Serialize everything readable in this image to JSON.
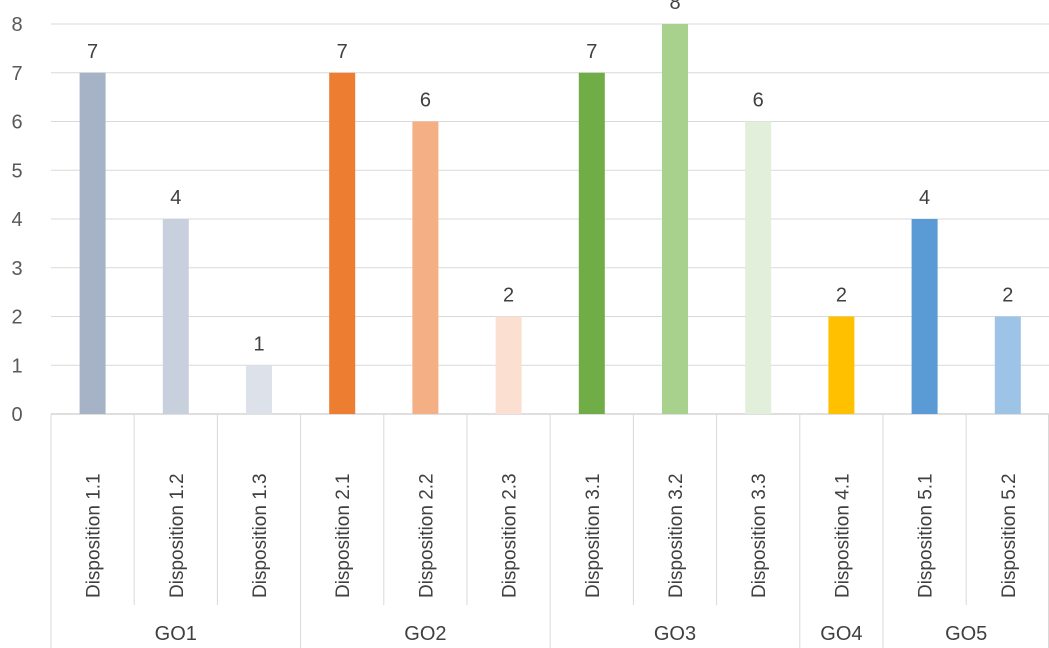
{
  "chart_data": {
    "type": "bar",
    "title": "",
    "xlabel": "",
    "ylabel": "",
    "ylim": [
      0,
      8
    ],
    "yticks": [
      0,
      1,
      2,
      3,
      4,
      5,
      6,
      7,
      8
    ],
    "grid": true,
    "legend": "none",
    "data_labels": true,
    "groups": [
      {
        "name": "GO1",
        "categories": [
          "Disposition 1.1",
          "Disposition 1.2",
          "Disposition 1.3"
        ],
        "values": [
          7,
          4,
          1
        ],
        "colors": [
          "#a6b3c6",
          "#c8cfdd",
          "#dde2ea"
        ]
      },
      {
        "name": "GO2",
        "categories": [
          "Disposition 2.1",
          "Disposition 2.2",
          "Disposition 2.3"
        ],
        "values": [
          7,
          6,
          2
        ],
        "colors": [
          "#ed7d31",
          "#f4af84",
          "#fbe0d2"
        ]
      },
      {
        "name": "GO3",
        "categories": [
          "Disposition 3.1",
          "Disposition 3.2",
          "Disposition 3.3"
        ],
        "values": [
          7,
          8,
          6
        ],
        "colors": [
          "#70ad47",
          "#a9d18e",
          "#e2efda"
        ]
      },
      {
        "name": "GO4",
        "categories": [
          "Disposition 4.1"
        ],
        "values": [
          2
        ],
        "colors": [
          "#ffc000"
        ]
      },
      {
        "name": "GO5",
        "categories": [
          "Disposition 5.1",
          "Disposition 5.2"
        ],
        "values": [
          4,
          2
        ],
        "colors": [
          "#5b9bd5",
          "#9dc3e6"
        ]
      }
    ]
  }
}
